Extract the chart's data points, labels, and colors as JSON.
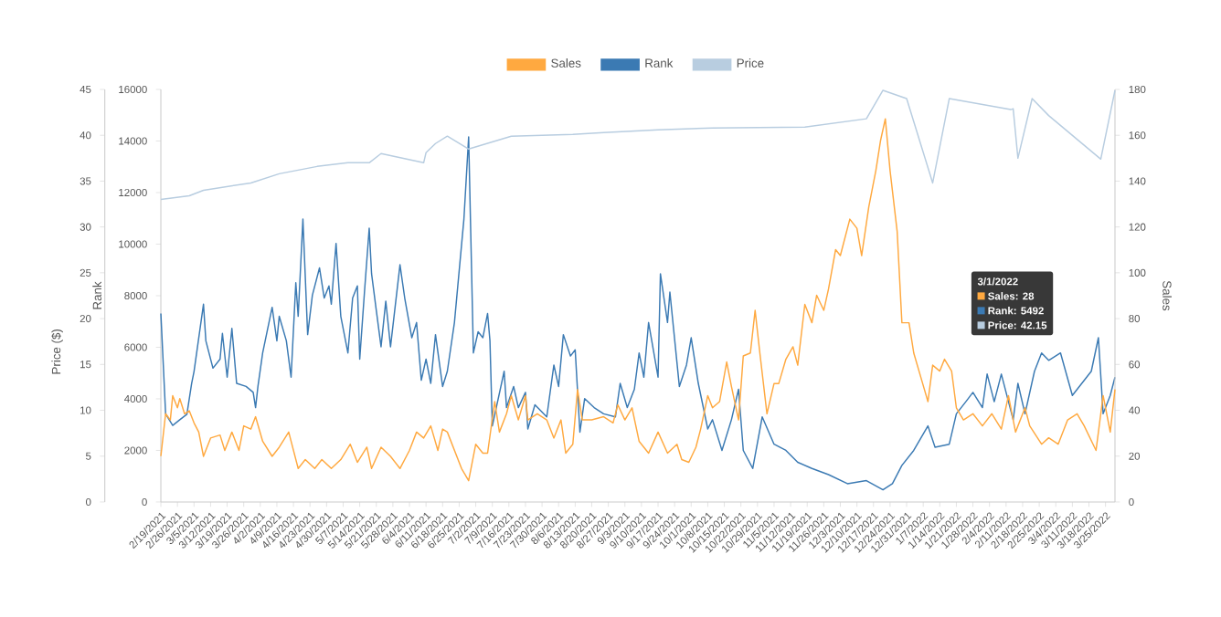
{
  "chart_data": {
    "type": "line",
    "legend": "top",
    "xlim": [
      "2021-02-19",
      "2022-03-29"
    ],
    "xticks": [
      {
        "value": "2021-02-19",
        "label": "2/19/2021"
      },
      {
        "value": "2021-02-26",
        "label": "2/26/2021"
      },
      {
        "value": "2021-03-05",
        "label": "3/5/2021"
      },
      {
        "value": "2021-03-12",
        "label": "3/12/2021"
      },
      {
        "value": "2021-03-19",
        "label": "3/19/2021"
      },
      {
        "value": "2021-03-26",
        "label": "3/26/2021"
      },
      {
        "value": "2021-04-02",
        "label": "4/2/2021"
      },
      {
        "value": "2021-04-09",
        "label": "4/9/2021"
      },
      {
        "value": "2021-04-16",
        "label": "4/16/2021"
      },
      {
        "value": "2021-04-23",
        "label": "4/23/2021"
      },
      {
        "value": "2021-04-30",
        "label": "4/30/2021"
      },
      {
        "value": "2021-05-07",
        "label": "5/7/2021"
      },
      {
        "value": "2021-05-14",
        "label": "5/14/2021"
      },
      {
        "value": "2021-05-21",
        "label": "5/21/2021"
      },
      {
        "value": "2021-05-28",
        "label": "5/28/2021"
      },
      {
        "value": "2021-06-04",
        "label": "6/4/2021"
      },
      {
        "value": "2021-06-11",
        "label": "6/11/2021"
      },
      {
        "value": "2021-06-18",
        "label": "6/18/2021"
      },
      {
        "value": "2021-06-25",
        "label": "6/25/2021"
      },
      {
        "value": "2021-07-02",
        "label": "7/2/2021"
      },
      {
        "value": "2021-07-09",
        "label": "7/9/2021"
      },
      {
        "value": "2021-07-16",
        "label": "7/16/2021"
      },
      {
        "value": "2021-07-23",
        "label": "7/23/2021"
      },
      {
        "value": "2021-07-30",
        "label": "7/30/2021"
      },
      {
        "value": "2021-08-06",
        "label": "8/6/2021"
      },
      {
        "value": "2021-08-13",
        "label": "8/13/2021"
      },
      {
        "value": "2021-08-20",
        "label": "8/20/2021"
      },
      {
        "value": "2021-08-27",
        "label": "8/27/2021"
      },
      {
        "value": "2021-09-03",
        "label": "9/3/2021"
      },
      {
        "value": "2021-09-10",
        "label": "9/10/2021"
      },
      {
        "value": "2021-09-17",
        "label": "9/17/2021"
      },
      {
        "value": "2021-09-24",
        "label": "9/24/2021"
      },
      {
        "value": "2021-10-01",
        "label": "10/1/2021"
      },
      {
        "value": "2021-10-08",
        "label": "10/8/2021"
      },
      {
        "value": "2021-10-15",
        "label": "10/15/2021"
      },
      {
        "value": "2021-10-22",
        "label": "10/22/2021"
      },
      {
        "value": "2021-10-29",
        "label": "10/29/2021"
      },
      {
        "value": "2021-11-05",
        "label": "11/5/2021"
      },
      {
        "value": "2021-11-12",
        "label": "11/12/2021"
      },
      {
        "value": "2021-11-19",
        "label": "11/19/2021"
      },
      {
        "value": "2021-11-26",
        "label": "11/26/2021"
      },
      {
        "value": "2021-12-03",
        "label": "12/3/2021"
      },
      {
        "value": "2021-12-10",
        "label": "12/10/2021"
      },
      {
        "value": "2021-12-17",
        "label": "12/17/2021"
      },
      {
        "value": "2021-12-24",
        "label": "12/24/2021"
      },
      {
        "value": "2021-12-31",
        "label": "12/31/2021"
      },
      {
        "value": "2022-01-07",
        "label": "1/7/2022"
      },
      {
        "value": "2022-01-14",
        "label": "1/14/2022"
      },
      {
        "value": "2022-01-21",
        "label": "1/21/2022"
      },
      {
        "value": "2022-01-28",
        "label": "1/28/2022"
      },
      {
        "value": "2022-02-04",
        "label": "2/4/2022"
      },
      {
        "value": "2022-02-11",
        "label": "2/11/2022"
      },
      {
        "value": "2022-02-18",
        "label": "2/18/2022"
      },
      {
        "value": "2022-02-25",
        "label": "2/25/2022"
      },
      {
        "value": "2022-03-04",
        "label": "3/4/2022"
      },
      {
        "value": "2022-03-11",
        "label": "3/11/2022"
      },
      {
        "value": "2022-03-18",
        "label": "3/18/2022"
      },
      {
        "value": "2022-03-25",
        "label": "3/25/2022"
      }
    ],
    "ylabel": "Rank",
    "ylim": [
      0,
      16000
    ],
    "yticks": [
      0,
      2000,
      4000,
      6000,
      8000,
      10000,
      12000,
      14000,
      16000
    ],
    "y2label": "Sales",
    "y2lim": [
      0,
      180
    ],
    "y2ticks": [
      0,
      20,
      40,
      60,
      80,
      100,
      120,
      140,
      160,
      180
    ],
    "y3label": "Price ($)",
    "y3lim": [
      0,
      45
    ],
    "y3ticks": [
      0,
      5,
      10,
      15,
      20,
      25,
      30,
      35,
      40,
      45
    ],
    "annotations": [
      "3/1/2022",
      "Sales: 28",
      "Rank: 5492",
      "Price: 42.15"
    ],
    "series": [
      {
        "name": "Sales",
        "color": "#ffa940",
        "axis": "y2",
        "x": [
          "2021-02-19",
          "2021-02-21",
          "2021-02-23",
          "2021-02-24",
          "2021-02-26",
          "2021-02-27",
          "2021-03-01",
          "2021-03-03",
          "2021-03-05",
          "2021-03-07",
          "2021-03-09",
          "2021-03-12",
          "2021-03-16",
          "2021-03-18",
          "2021-03-21",
          "2021-03-24",
          "2021-03-26",
          "2021-03-29",
          "2021-03-31",
          "2021-04-03",
          "2021-04-07",
          "2021-04-10",
          "2021-04-14",
          "2021-04-18",
          "2021-04-21",
          "2021-04-25",
          "2021-04-28",
          "2021-05-02",
          "2021-05-06",
          "2021-05-10",
          "2021-05-13",
          "2021-05-17",
          "2021-05-19",
          "2021-05-23",
          "2021-05-27",
          "2021-05-31",
          "2021-06-04",
          "2021-06-07",
          "2021-06-10",
          "2021-06-13",
          "2021-06-16",
          "2021-06-18",
          "2021-06-20",
          "2021-06-26",
          "2021-06-29",
          "2021-07-02",
          "2021-07-05",
          "2021-07-07",
          "2021-07-10",
          "2021-07-12",
          "2021-07-15",
          "2021-07-17",
          "2021-07-20",
          "2021-07-23",
          "2021-07-24",
          "2021-07-28",
          "2021-08-01",
          "2021-08-04",
          "2021-08-07",
          "2021-08-09",
          "2021-08-12",
          "2021-08-14",
          "2021-08-16",
          "2021-08-20",
          "2021-08-25",
          "2021-08-29",
          "2021-08-31",
          "2021-09-03",
          "2021-09-06",
          "2021-09-09",
          "2021-09-13",
          "2021-09-17",
          "2021-09-21",
          "2021-09-25",
          "2021-09-27",
          "2021-09-30",
          "2021-10-03",
          "2021-10-05",
          "2021-10-08",
          "2021-10-10",
          "2021-10-13",
          "2021-10-16",
          "2021-10-18",
          "2021-10-21",
          "2021-10-23",
          "2021-10-26",
          "2021-10-28",
          "2021-10-30",
          "2021-11-02",
          "2021-11-05",
          "2021-11-07",
          "2021-11-10",
          "2021-11-13",
          "2021-11-15",
          "2021-11-18",
          "2021-11-21",
          "2021-11-23",
          "2021-11-26",
          "2021-11-28",
          "2021-12-01",
          "2021-12-03",
          "2021-12-07",
          "2021-12-10",
          "2021-12-12",
          "2021-12-15",
          "2021-12-18",
          "2021-12-20",
          "2021-12-22",
          "2021-12-24",
          "2021-12-27",
          "2021-12-29",
          "2022-01-01",
          "2022-01-03",
          "2022-01-06",
          "2022-01-09",
          "2022-01-11",
          "2022-01-14",
          "2022-01-16",
          "2022-01-19",
          "2022-01-21",
          "2022-01-24",
          "2022-01-28",
          "2022-02-01",
          "2022-02-05",
          "2022-02-09",
          "2022-02-12",
          "2022-02-15",
          "2022-02-19",
          "2022-02-21",
          "2022-02-26",
          "2022-03-01",
          "2022-03-05",
          "2022-03-09",
          "2022-03-13",
          "2022-03-16",
          "2022-03-21",
          "2022-03-24",
          "2022-03-27",
          "2022-03-29"
        ],
        "values": [
          20,
          38.5,
          35.8,
          46.4,
          41.1,
          45.1,
          38.5,
          39.8,
          34.5,
          30.5,
          19.9,
          27.9,
          29.2,
          22.5,
          30.5,
          22.5,
          33.2,
          31.8,
          37.2,
          26.5,
          19.9,
          23.9,
          30.5,
          14.6,
          18.5,
          14.6,
          18.5,
          14.6,
          18.5,
          25.2,
          17.3,
          23.9,
          14.6,
          23.9,
          19.9,
          14.6,
          22.5,
          30.5,
          27.9,
          33.2,
          22.5,
          31.8,
          30.5,
          14.6,
          9.3,
          25.2,
          21.3,
          21.3,
          43.8,
          30.5,
          38.5,
          46.4,
          35.8,
          46.4,
          35.8,
          38.5,
          35.8,
          27.9,
          35.8,
          21.3,
          25.2,
          49.1,
          35.8,
          35.8,
          37.2,
          34.5,
          42.4,
          35.8,
          41.1,
          26.5,
          21.3,
          30.5,
          21.3,
          25.2,
          18.5,
          17.3,
          23.9,
          31.8,
          46.4,
          41.1,
          43.8,
          61.1,
          50.4,
          35.8,
          63.7,
          65,
          83.6,
          65,
          38.5,
          51.7,
          51.7,
          62.3,
          67.7,
          59.7,
          86.2,
          78.2,
          90.2,
          83.6,
          92.9,
          110.1,
          107.5,
          123.4,
          119.4,
          107.5,
          128.7,
          144.6,
          157.8,
          167.2,
          144.6,
          118,
          78.2,
          78.2,
          65,
          54.4,
          43.8,
          59.7,
          57.1,
          62.3,
          57.1,
          41.1,
          35.8,
          38.5,
          33.2,
          38.5,
          31.8,
          46.4,
          30.5,
          41.1,
          33.2,
          25.2,
          28,
          25.2,
          35.8,
          38.5,
          33.2,
          22.5,
          46.4,
          30.5,
          49.1
        ]
      },
      {
        "name": "Rank",
        "color": "#3b7ab3",
        "axis": "y",
        "x": [
          "2021-02-19",
          "2021-02-21",
          "2021-02-24",
          "2021-02-27",
          "2021-03-02",
          "2021-03-04",
          "2021-03-05",
          "2021-03-09",
          "2021-03-10",
          "2021-03-13",
          "2021-03-16",
          "2021-03-17",
          "2021-03-19",
          "2021-03-21",
          "2021-03-23",
          "2021-03-27",
          "2021-03-30",
          "2021-03-31",
          "2021-04-01",
          "2021-04-03",
          "2021-04-07",
          "2021-04-09",
          "2021-04-10",
          "2021-04-13",
          "2021-04-15",
          "2021-04-17",
          "2021-04-18",
          "2021-04-20",
          "2021-04-22",
          "2021-04-24",
          "2021-04-27",
          "2021-04-29",
          "2021-05-01",
          "2021-05-02",
          "2021-05-04",
          "2021-05-06",
          "2021-05-09",
          "2021-05-11",
          "2021-05-13",
          "2021-05-14",
          "2021-05-16",
          "2021-05-18",
          "2021-05-19",
          "2021-05-21",
          "2021-05-23",
          "2021-05-25",
          "2021-05-27",
          "2021-05-31",
          "2021-06-02",
          "2021-06-05",
          "2021-06-07",
          "2021-06-09",
          "2021-06-11",
          "2021-06-13",
          "2021-06-15",
          "2021-06-18",
          "2021-06-20",
          "2021-06-23",
          "2021-06-27",
          "2021-06-29",
          "2021-07-01",
          "2021-07-03",
          "2021-07-05",
          "2021-07-07",
          "2021-07-08",
          "2021-07-09",
          "2021-07-14",
          "2021-07-15",
          "2021-07-18",
          "2021-07-20",
          "2021-07-23",
          "2021-07-24",
          "2021-07-27",
          "2021-08-01",
          "2021-08-04",
          "2021-08-06",
          "2021-08-08",
          "2021-08-11",
          "2021-08-13",
          "2021-08-15",
          "2021-08-17",
          "2021-08-21",
          "2021-08-25",
          "2021-08-30",
          "2021-09-01",
          "2021-09-04",
          "2021-09-07",
          "2021-09-09",
          "2021-09-11",
          "2021-09-13",
          "2021-09-17",
          "2021-09-18",
          "2021-09-21",
          "2021-09-22",
          "2021-09-26",
          "2021-09-29",
          "2021-10-01",
          "2021-10-04",
          "2021-10-08",
          "2021-10-10",
          "2021-10-14",
          "2021-10-18",
          "2021-10-21",
          "2021-10-23",
          "2021-10-27",
          "2021-10-31",
          "2021-11-05",
          "2021-11-10",
          "2021-11-15",
          "2021-11-21",
          "2021-11-28",
          "2021-12-06",
          "2021-12-14",
          "2021-12-21",
          "2021-12-25",
          "2021-12-29",
          "2022-01-03",
          "2022-01-09",
          "2022-01-12",
          "2022-01-18",
          "2022-01-21",
          "2022-01-25",
          "2022-01-28",
          "2022-02-01",
          "2022-02-03",
          "2022-02-06",
          "2022-02-09",
          "2022-02-14",
          "2022-02-16",
          "2022-02-19",
          "2022-02-23",
          "2022-02-26",
          "2022-03-01",
          "2022-03-06",
          "2022-03-11",
          "2022-03-15",
          "2022-03-19",
          "2022-03-22",
          "2022-03-24",
          "2022-03-27",
          "2022-03-29"
        ],
        "values": [
          7310,
          3420,
          2970,
          3190,
          3400,
          4600,
          5060,
          7670,
          6250,
          5190,
          5540,
          6540,
          4840,
          6730,
          4600,
          4480,
          4250,
          3660,
          4480,
          5780,
          7550,
          6250,
          7200,
          6250,
          4840,
          8500,
          7200,
          10970,
          6490,
          8020,
          9080,
          7910,
          8380,
          7670,
          10030,
          7200,
          5780,
          7910,
          8380,
          5540,
          8140,
          10620,
          8850,
          7430,
          6020,
          7790,
          6020,
          9200,
          7910,
          6370,
          6960,
          4720,
          5540,
          4600,
          6490,
          4480,
          5070,
          6960,
          10970,
          14160,
          5780,
          6600,
          6370,
          7310,
          6250,
          2950,
          5070,
          3660,
          4480,
          3660,
          4250,
          2830,
          3770,
          3300,
          5310,
          4480,
          6490,
          5660,
          5900,
          2710,
          4010,
          3660,
          3420,
          3300,
          4600,
          3660,
          4370,
          5780,
          4840,
          6960,
          4840,
          8850,
          6960,
          8140,
          4480,
          5310,
          6370,
          4600,
          2830,
          3190,
          2000,
          3190,
          4370,
          2000,
          1300,
          3300,
          2240,
          2000,
          1540,
          1300,
          1060,
          710,
          830,
          470,
          710,
          1420,
          2000,
          2950,
          2120,
          2240,
          3420,
          3890,
          4250,
          3660,
          4960,
          3890,
          4960,
          3190,
          4600,
          3420,
          5070,
          5780,
          5492,
          5780,
          4130,
          4600,
          5070,
          6370,
          3420,
          4130,
          4840
        ]
      },
      {
        "name": "Price",
        "color": "#b8cde0",
        "axis": "y3",
        "x": [
          "2021-02-19",
          "2021-03-03",
          "2021-03-09",
          "2021-03-29",
          "2021-04-10",
          "2021-04-26",
          "2021-05-09",
          "2021-05-18",
          "2021-05-23",
          "2021-06-10",
          "2021-06-11",
          "2021-06-15",
          "2021-06-20",
          "2021-06-29",
          "2021-07-17",
          "2021-08-12",
          "2021-08-25",
          "2021-09-17",
          "2021-10-10",
          "2021-11-18",
          "2021-12-14",
          "2021-12-21",
          "2021-12-31",
          "2022-01-11",
          "2022-01-18",
          "2022-02-13",
          "2022-02-14",
          "2022-02-16",
          "2022-02-22",
          "2022-03-01",
          "2022-03-23",
          "2022-03-29"
        ],
        "values": [
          33.0,
          33.4,
          34.0,
          34.8,
          35.8,
          36.6,
          37.0,
          37.0,
          38.0,
          37.0,
          38.1,
          39.1,
          39.9,
          38.5,
          39.9,
          40.1,
          40.3,
          40.6,
          40.8,
          40.9,
          41.8,
          44.9,
          44.0,
          34.8,
          44.0,
          42.8,
          42.9,
          37.5,
          44.0,
          42.15,
          37.4,
          44.9
        ]
      }
    ]
  }
}
